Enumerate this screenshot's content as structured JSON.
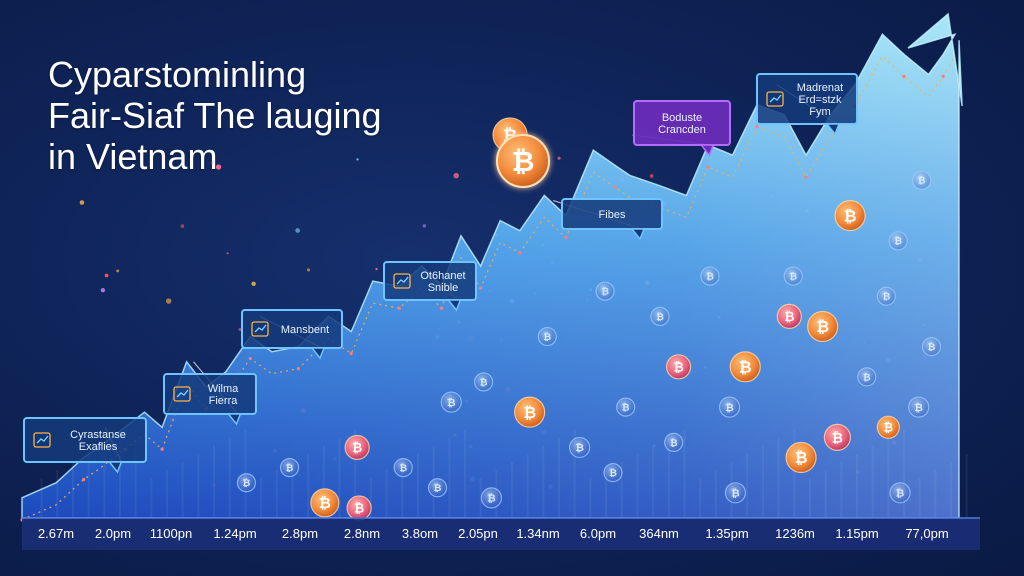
{
  "title_lines": [
    "Cyparstominling",
    "Fair-Siaf The lauging",
    "in Vietnam"
  ],
  "colors": {
    "background": "#0f2459",
    "area_top": "#8fe6ff",
    "area_bottom": "#1e5ad6",
    "trend_line": "#f5b04a",
    "callout_border": "#6fc3ff",
    "callout_fill": "#143a7a",
    "callout_accent_border": "#b46cff",
    "callout_accent_fill": "#6a2cb8",
    "coin": "#f28a3a",
    "coin_pink": "#e85c7a",
    "axis_bar": "#1b2f78"
  },
  "chart_data": {
    "type": "area",
    "title": "Cyparstominling Fair-Siaf The lauging in Vietnam",
    "xlabel": "",
    "ylabel": "",
    "grid": false,
    "x_ticks": [
      "2.67m",
      "2.0pm",
      "1100pn",
      "1.24pm",
      "2.8pm",
      "2.8nm",
      "3.8om",
      "2.05pn",
      "1.34nm",
      "6.0pm",
      "364nm",
      "1.35pm",
      "1236m",
      "1.15pm",
      "77,0pm"
    ],
    "x": [
      0,
      3.5,
      6.3,
      7.8,
      10.5,
      12.5,
      14.3,
      16.8,
      18.8,
      20.8,
      23.3,
      25.5,
      28.2,
      31.3,
      33.6,
      35.8,
      38.5,
      40.8,
      42.8,
      44.8,
      46.8,
      48.8,
      50.8,
      53.3,
      55.5,
      58.3,
      60.5,
      62.0,
      65.0,
      67.8,
      70.0,
      72.5,
      75.0,
      77.8,
      80.0,
      82.5,
      85.0,
      87.8,
      90.0,
      92.5,
      94.0,
      95.2
    ],
    "y": [
      4,
      7,
      12,
      14,
      18,
      21,
      18,
      31,
      26,
      29,
      36,
      33,
      34,
      40,
      37,
      47,
      46,
      50,
      46,
      56,
      50,
      59,
      57,
      64,
      60,
      73,
      70,
      68,
      66,
      64,
      74,
      72,
      82,
      80,
      72,
      80,
      86,
      96,
      92,
      88,
      92,
      96
    ],
    "ylim": [
      0,
      100
    ],
    "arrow_head": {
      "x": 94.5,
      "y": 100
    },
    "callouts": [
      {
        "lines": [
          "Cyrastanse",
          "Exaflies"
        ],
        "icon": "chart-icon",
        "style": "normal",
        "x": 8.5,
        "y": 18
      },
      {
        "lines": [
          "Wilma",
          "Fierra"
        ],
        "icon": "arrows-icon",
        "style": "normal",
        "x": 17.5,
        "y": 31
      },
      {
        "lines": [
          "Mansbent"
        ],
        "icon": "coin-icon",
        "style": "normal",
        "x": 24.3,
        "y": 40
      },
      {
        "lines": [
          "Ot6hanet",
          "Snible"
        ],
        "icon": "wallet-icon",
        "style": "normal",
        "x": 40.8,
        "y": 50
      },
      {
        "lines": [
          "Fibes"
        ],
        "icon": "",
        "style": "normal",
        "x": 54.2,
        "y": 63
      },
      {
        "lines": [
          "Boduste",
          "Crancden"
        ],
        "icon": "",
        "style": "accent",
        "x": 62.3,
        "y": 76
      },
      {
        "lines": [
          "Madrenat",
          "Erd=stzk",
          "Fym"
        ],
        "icon": "shield-icon",
        "style": "normal",
        "x": 77.0,
        "y": 86
      }
    ],
    "coins_label": "₿",
    "coins": [
      {
        "x": 49.8,
        "y": 76,
        "size": 17,
        "tone": "orange"
      },
      {
        "x": 84.5,
        "y": 60,
        "size": 15,
        "tone": "orange"
      },
      {
        "x": 81.7,
        "y": 38,
        "size": 15,
        "tone": "orange"
      },
      {
        "x": 73.8,
        "y": 30,
        "size": 15,
        "tone": "orange"
      },
      {
        "x": 51.8,
        "y": 21,
        "size": 15,
        "tone": "orange"
      },
      {
        "x": 79.5,
        "y": 12,
        "size": 15,
        "tone": "orange"
      },
      {
        "x": 30.9,
        "y": 3,
        "size": 14,
        "tone": "orange"
      },
      {
        "x": 88.4,
        "y": 18,
        "size": 11,
        "tone": "orange"
      },
      {
        "x": 34.2,
        "y": 14,
        "size": 12,
        "tone": "pink"
      },
      {
        "x": 67.0,
        "y": 30,
        "size": 12,
        "tone": "pink"
      },
      {
        "x": 78.3,
        "y": 40,
        "size": 12,
        "tone": "pink"
      },
      {
        "x": 83.2,
        "y": 16,
        "size": 13,
        "tone": "pink"
      },
      {
        "x": 34.4,
        "y": 2,
        "size": 12,
        "tone": "pink"
      },
      {
        "x": 91.5,
        "y": 22,
        "size": 10,
        "tone": "glass"
      },
      {
        "x": 88.2,
        "y": 44,
        "size": 9,
        "tone": "glass"
      },
      {
        "x": 86.2,
        "y": 28,
        "size": 9,
        "tone": "glass"
      },
      {
        "x": 72.2,
        "y": 22,
        "size": 10,
        "tone": "glass"
      },
      {
        "x": 66.5,
        "y": 15,
        "size": 9,
        "tone": "glass"
      },
      {
        "x": 61.6,
        "y": 22,
        "size": 9,
        "tone": "glass"
      },
      {
        "x": 56.9,
        "y": 14,
        "size": 10,
        "tone": "glass"
      },
      {
        "x": 53.6,
        "y": 36,
        "size": 9,
        "tone": "glass"
      },
      {
        "x": 47.1,
        "y": 27,
        "size": 9,
        "tone": "glass"
      },
      {
        "x": 43.8,
        "y": 23,
        "size": 10,
        "tone": "glass"
      },
      {
        "x": 38.9,
        "y": 10,
        "size": 9,
        "tone": "glass"
      },
      {
        "x": 47.9,
        "y": 4,
        "size": 10,
        "tone": "glass"
      },
      {
        "x": 42.4,
        "y": 6,
        "size": 9,
        "tone": "glass"
      },
      {
        "x": 60.3,
        "y": 9,
        "size": 9,
        "tone": "glass"
      },
      {
        "x": 72.8,
        "y": 5,
        "size": 10,
        "tone": "glass"
      },
      {
        "x": 89.6,
        "y": 5,
        "size": 10,
        "tone": "glass"
      },
      {
        "x": 92.8,
        "y": 34,
        "size": 9,
        "tone": "glass"
      },
      {
        "x": 89.4,
        "y": 55,
        "size": 9,
        "tone": "glass"
      },
      {
        "x": 91.8,
        "y": 67,
        "size": 9,
        "tone": "glass"
      },
      {
        "x": 27.3,
        "y": 10,
        "size": 9,
        "tone": "glass"
      },
      {
        "x": 22.9,
        "y": 7,
        "size": 9,
        "tone": "glass"
      },
      {
        "x": 65.1,
        "y": 40,
        "size": 9,
        "tone": "glass"
      },
      {
        "x": 59.5,
        "y": 45,
        "size": 9,
        "tone": "glass"
      },
      {
        "x": 78.7,
        "y": 48,
        "size": 9,
        "tone": "glass"
      },
      {
        "x": 70.2,
        "y": 48,
        "size": 9,
        "tone": "glass"
      }
    ]
  }
}
